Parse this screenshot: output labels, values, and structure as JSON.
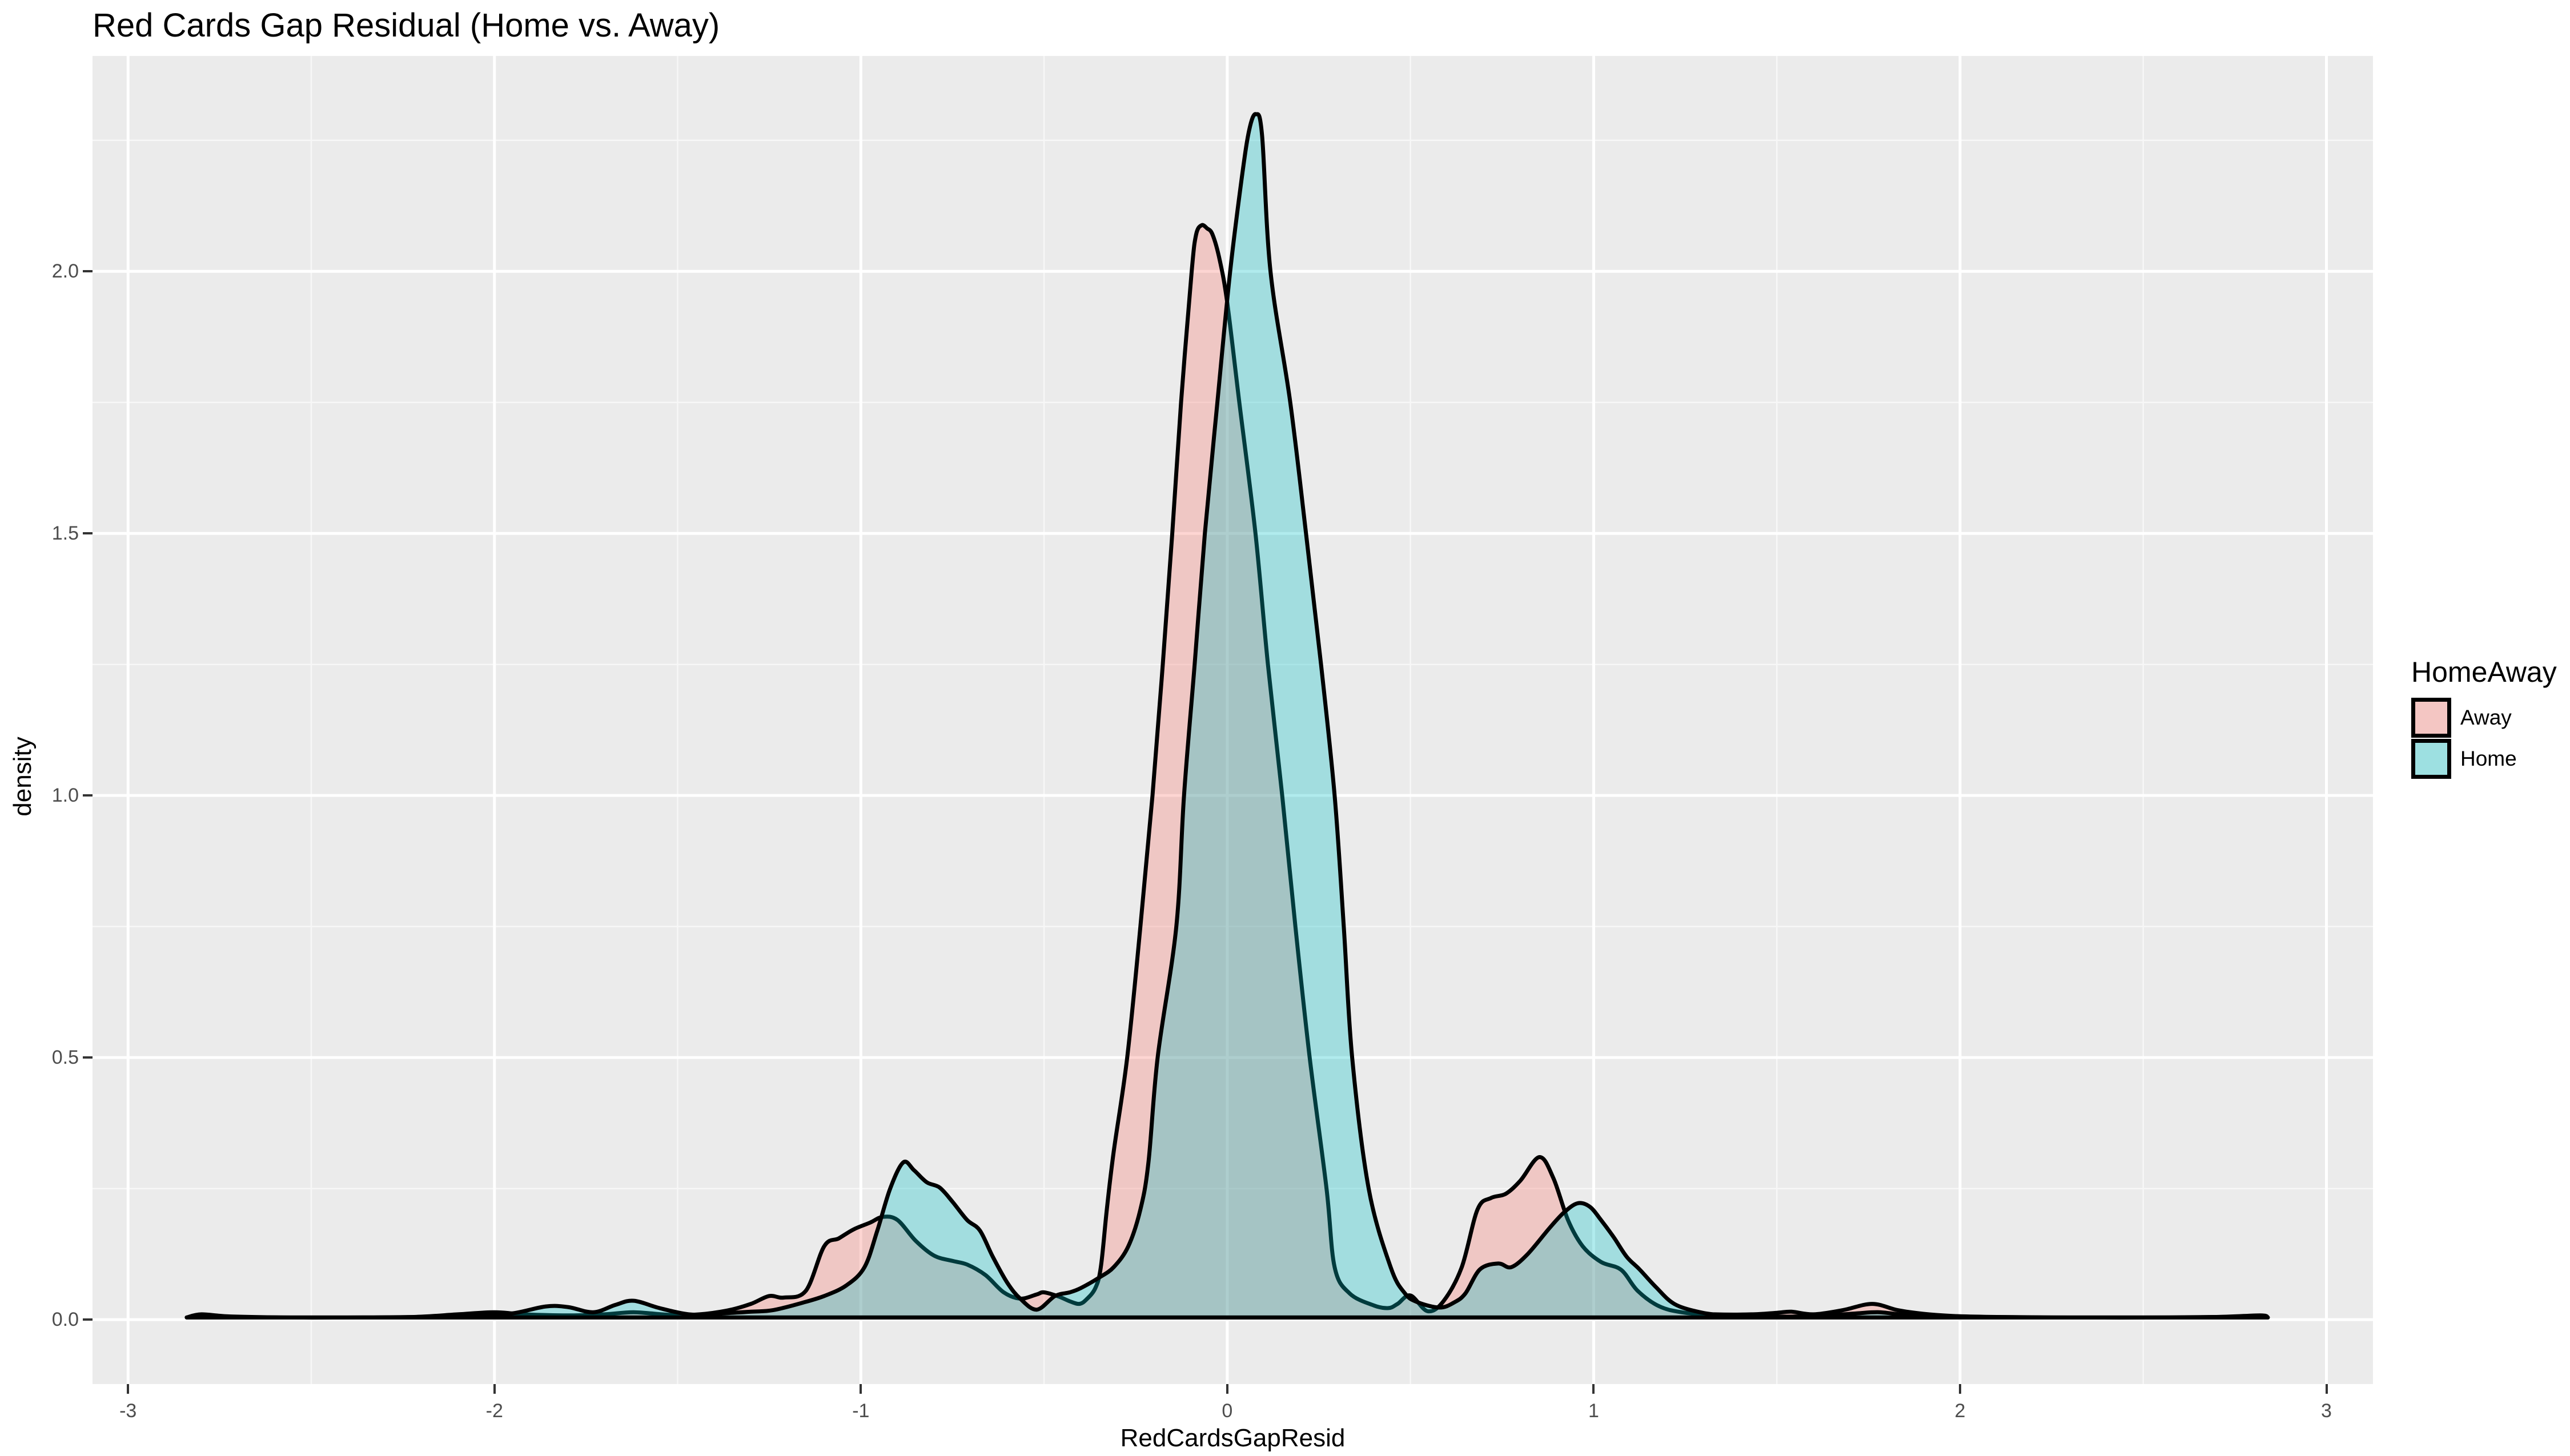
{
  "title": "Red Cards Gap Residual (Home vs. Away)",
  "chart_data": {
    "type": "area",
    "subtype": "kernel-density",
    "title": "Red Cards Gap Residual (Home vs. Away)",
    "xlabel": "RedCardsGapResid",
    "ylabel": "density",
    "legend_title": "HomeAway",
    "legend_position": "right",
    "grid": true,
    "panel_bg": "#EBEBEB",
    "grid_major_color": "#FFFFFF",
    "grid_minor_color": "#F7F7F7",
    "tick_mark_color": "#333333",
    "tick_label_color": "#4D4D4D",
    "xlim": [
      -3.097,
      3.127
    ],
    "ylim": [
      -0.123,
      2.411
    ],
    "x_ticks": [
      {
        "v": -3,
        "label": "-3"
      },
      {
        "v": -2,
        "label": "-2"
      },
      {
        "v": -1,
        "label": "-1"
      },
      {
        "v": 0,
        "label": "0"
      },
      {
        "v": 1,
        "label": "1"
      },
      {
        "v": 2,
        "label": "2"
      },
      {
        "v": 3,
        "label": "3"
      }
    ],
    "y_ticks": [
      {
        "v": 0,
        "label": "0.0"
      },
      {
        "v": 0.5,
        "label": "0.5"
      },
      {
        "v": 1,
        "label": "1.0"
      },
      {
        "v": 1.5,
        "label": "1.5"
      },
      {
        "v": 2,
        "label": "2.0"
      }
    ],
    "x_minor": [
      -2.5,
      -1.5,
      -0.5,
      0.5,
      1.5,
      2.5
    ],
    "y_minor": [
      0.25,
      0.75,
      1.25,
      1.75,
      2.25
    ],
    "stroke_width": 7,
    "series": [
      {
        "name": "Away",
        "fill": "#F8766D",
        "fill_alpha": 0.31,
        "stroke": "#000000",
        "points": [
          [
            -2.84,
            0.004
          ],
          [
            -2.8,
            0.01
          ],
          [
            -2.72,
            0.006
          ],
          [
            -2.55,
            0.004
          ],
          [
            -2.38,
            0.004
          ],
          [
            -2.22,
            0.005
          ],
          [
            -2.1,
            0.01
          ],
          [
            -2.0,
            0.014
          ],
          [
            -1.92,
            0.01
          ],
          [
            -1.8,
            0.008
          ],
          [
            -1.7,
            0.01
          ],
          [
            -1.62,
            0.014
          ],
          [
            -1.52,
            0.009
          ],
          [
            -1.44,
            0.01
          ],
          [
            -1.36,
            0.018
          ],
          [
            -1.3,
            0.03
          ],
          [
            -1.25,
            0.045
          ],
          [
            -1.21,
            0.042
          ],
          [
            -1.15,
            0.055
          ],
          [
            -1.1,
            0.14
          ],
          [
            -1.06,
            0.155
          ],
          [
            -1.02,
            0.172
          ],
          [
            -0.975,
            0.185
          ],
          [
            -0.94,
            0.196
          ],
          [
            -0.9,
            0.19
          ],
          [
            -0.85,
            0.15
          ],
          [
            -0.8,
            0.122
          ],
          [
            -0.75,
            0.112
          ],
          [
            -0.71,
            0.105
          ],
          [
            -0.66,
            0.085
          ],
          [
            -0.61,
            0.052
          ],
          [
            -0.565,
            0.04
          ],
          [
            -0.52,
            0.048
          ],
          [
            -0.5,
            0.052
          ],
          [
            -0.46,
            0.044
          ],
          [
            -0.43,
            0.035
          ],
          [
            -0.404,
            0.03
          ],
          [
            -0.385,
            0.038
          ],
          [
            -0.36,
            0.06
          ],
          [
            -0.345,
            0.1
          ],
          [
            -0.329,
            0.208
          ],
          [
            -0.31,
            0.32
          ],
          [
            -0.273,
            0.5
          ],
          [
            -0.237,
            0.75
          ],
          [
            -0.204,
            1.0
          ],
          [
            -0.176,
            1.25
          ],
          [
            -0.15,
            1.5
          ],
          [
            -0.126,
            1.75
          ],
          [
            -0.097,
            2.0
          ],
          [
            -0.085,
            2.07
          ],
          [
            -0.07,
            2.088
          ],
          [
            -0.055,
            2.082
          ],
          [
            -0.04,
            2.07
          ],
          [
            -0.02,
            2.02
          ],
          [
            0.0,
            1.94
          ],
          [
            0.033,
            1.75
          ],
          [
            0.077,
            1.5
          ],
          [
            0.111,
            1.25
          ],
          [
            0.15,
            1.0
          ],
          [
            0.186,
            0.75
          ],
          [
            0.225,
            0.5
          ],
          [
            0.271,
            0.25
          ],
          [
            0.293,
            0.1
          ],
          [
            0.334,
            0.05
          ],
          [
            0.4,
            0.027
          ],
          [
            0.44,
            0.022
          ],
          [
            0.465,
            0.03
          ],
          [
            0.5,
            0.046
          ],
          [
            0.547,
            0.016
          ],
          [
            0.59,
            0.035
          ],
          [
            0.64,
            0.1
          ],
          [
            0.683,
            0.21
          ],
          [
            0.72,
            0.232
          ],
          [
            0.76,
            0.24
          ],
          [
            0.8,
            0.265
          ],
          [
            0.852,
            0.31
          ],
          [
            0.89,
            0.27
          ],
          [
            0.93,
            0.19
          ],
          [
            0.97,
            0.14
          ],
          [
            1.02,
            0.11
          ],
          [
            1.075,
            0.095
          ],
          [
            1.12,
            0.055
          ],
          [
            1.18,
            0.025
          ],
          [
            1.25,
            0.013
          ],
          [
            1.33,
            0.01
          ],
          [
            1.43,
            0.01
          ],
          [
            1.5,
            0.013
          ],
          [
            1.54,
            0.015
          ],
          [
            1.6,
            0.01
          ],
          [
            1.68,
            0.018
          ],
          [
            1.76,
            0.03
          ],
          [
            1.83,
            0.018
          ],
          [
            1.9,
            0.011
          ],
          [
            1.98,
            0.007
          ],
          [
            2.1,
            0.005
          ],
          [
            2.3,
            0.004
          ],
          [
            2.5,
            0.004
          ],
          [
            2.7,
            0.005
          ],
          [
            2.82,
            0.008
          ],
          [
            2.84,
            0.004
          ]
        ]
      },
      {
        "name": "Home",
        "fill": "#00BFC4",
        "fill_alpha": 0.31,
        "stroke": "#000000",
        "points": [
          [
            -2.84,
            0.004
          ],
          [
            -2.6,
            0.004
          ],
          [
            -2.4,
            0.004
          ],
          [
            -2.2,
            0.005
          ],
          [
            -2.05,
            0.007
          ],
          [
            -1.95,
            0.012
          ],
          [
            -1.86,
            0.025
          ],
          [
            -1.8,
            0.024
          ],
          [
            -1.73,
            0.014
          ],
          [
            -1.67,
            0.028
          ],
          [
            -1.62,
            0.036
          ],
          [
            -1.55,
            0.022
          ],
          [
            -1.47,
            0.01
          ],
          [
            -1.4,
            0.011
          ],
          [
            -1.3,
            0.015
          ],
          [
            -1.24,
            0.018
          ],
          [
            -1.16,
            0.032
          ],
          [
            -1.1,
            0.045
          ],
          [
            -1.04,
            0.065
          ],
          [
            -0.99,
            0.1
          ],
          [
            -0.955,
            0.17
          ],
          [
            -0.92,
            0.25
          ],
          [
            -0.884,
            0.3
          ],
          [
            -0.855,
            0.285
          ],
          [
            -0.82,
            0.262
          ],
          [
            -0.785,
            0.252
          ],
          [
            -0.75,
            0.225
          ],
          [
            -0.71,
            0.19
          ],
          [
            -0.675,
            0.17
          ],
          [
            -0.64,
            0.12
          ],
          [
            -0.6,
            0.07
          ],
          [
            -0.565,
            0.04
          ],
          [
            -0.52,
            0.019
          ],
          [
            -0.47,
            0.045
          ],
          [
            -0.43,
            0.052
          ],
          [
            -0.4,
            0.06
          ],
          [
            -0.35,
            0.08
          ],
          [
            -0.31,
            0.1
          ],
          [
            -0.27,
            0.14
          ],
          [
            -0.237,
            0.21
          ],
          [
            -0.215,
            0.3
          ],
          [
            -0.19,
            0.5
          ],
          [
            -0.139,
            0.75
          ],
          [
            -0.118,
            1.0
          ],
          [
            -0.089,
            1.25
          ],
          [
            -0.061,
            1.5
          ],
          [
            -0.027,
            1.75
          ],
          [
            0.008,
            2.0
          ],
          [
            0.04,
            2.18
          ],
          [
            0.06,
            2.27
          ],
          [
            0.078,
            2.3
          ],
          [
            0.095,
            2.26
          ],
          [
            0.118,
            2.0
          ],
          [
            0.172,
            1.75
          ],
          [
            0.215,
            1.5
          ],
          [
            0.256,
            1.25
          ],
          [
            0.293,
            1.0
          ],
          [
            0.318,
            0.75
          ],
          [
            0.341,
            0.5
          ],
          [
            0.386,
            0.25
          ],
          [
            0.446,
            0.1
          ],
          [
            0.485,
            0.05
          ],
          [
            0.52,
            0.033
          ],
          [
            0.58,
            0.023
          ],
          [
            0.62,
            0.033
          ],
          [
            0.65,
            0.05
          ],
          [
            0.69,
            0.096
          ],
          [
            0.74,
            0.107
          ],
          [
            0.775,
            0.1
          ],
          [
            0.82,
            0.125
          ],
          [
            0.88,
            0.175
          ],
          [
            0.92,
            0.205
          ],
          [
            0.957,
            0.222
          ],
          [
            0.99,
            0.215
          ],
          [
            1.02,
            0.19
          ],
          [
            1.055,
            0.157
          ],
          [
            1.09,
            0.12
          ],
          [
            1.125,
            0.096
          ],
          [
            1.17,
            0.062
          ],
          [
            1.22,
            0.03
          ],
          [
            1.29,
            0.014
          ],
          [
            1.36,
            0.008
          ],
          [
            1.45,
            0.006
          ],
          [
            1.56,
            0.006
          ],
          [
            1.66,
            0.009
          ],
          [
            1.72,
            0.012
          ],
          [
            1.78,
            0.014
          ],
          [
            1.85,
            0.009
          ],
          [
            1.95,
            0.006
          ],
          [
            2.05,
            0.005
          ],
          [
            2.3,
            0.004
          ],
          [
            2.6,
            0.004
          ],
          [
            2.8,
            0.006
          ],
          [
            2.84,
            0.004
          ]
        ]
      }
    ]
  },
  "legend": {
    "key_bg": "#F2F2F2"
  }
}
